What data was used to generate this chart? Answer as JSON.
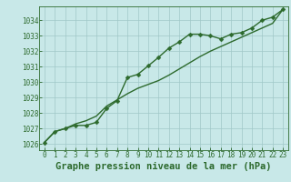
{
  "x": [
    0,
    1,
    2,
    3,
    4,
    5,
    6,
    7,
    8,
    9,
    10,
    11,
    12,
    13,
    14,
    15,
    16,
    17,
    18,
    19,
    20,
    21,
    22,
    23
  ],
  "line1": [
    1026.1,
    1026.8,
    1027.0,
    1027.2,
    1027.2,
    1027.4,
    1028.3,
    1028.8,
    1030.3,
    1030.5,
    1031.05,
    1031.6,
    1032.2,
    1032.6,
    1033.1,
    1033.1,
    1033.0,
    1032.8,
    1033.1,
    1033.2,
    1033.5,
    1034.0,
    1034.2,
    1034.7
  ],
  "line2": [
    1026.1,
    1026.8,
    1027.0,
    1027.3,
    1027.5,
    1027.8,
    1028.45,
    1028.85,
    1029.25,
    1029.6,
    1029.85,
    1030.1,
    1030.45,
    1030.85,
    1031.25,
    1031.65,
    1032.0,
    1032.3,
    1032.6,
    1032.9,
    1033.2,
    1033.5,
    1033.8,
    1034.7
  ],
  "bg_color": "#c8e8e8",
  "line_color": "#2d6a2d",
  "grid_color": "#a0c8c8",
  "title": "Graphe pression niveau de la mer (hPa)",
  "ylim_min": 1025.6,
  "ylim_max": 1034.9,
  "yticks": [
    1026,
    1027,
    1028,
    1029,
    1030,
    1031,
    1032,
    1033,
    1034
  ],
  "xticks": [
    0,
    1,
    2,
    3,
    4,
    5,
    6,
    7,
    8,
    9,
    10,
    11,
    12,
    13,
    14,
    15,
    16,
    17,
    18,
    19,
    20,
    21,
    22,
    23
  ],
  "marker_size": 2.5,
  "line_width": 1.0,
  "title_fontsize": 7.5,
  "tick_fontsize": 5.5
}
